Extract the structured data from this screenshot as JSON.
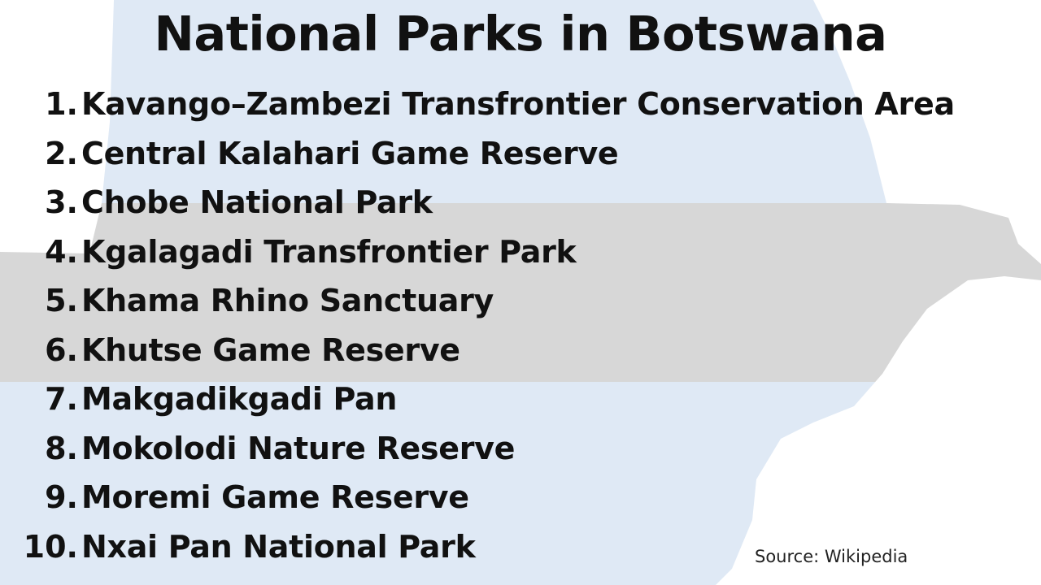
{
  "title": "National Parks in Botswana",
  "parks": [
    {
      "number": "1.",
      "name": "Kavango–Zambezi Transfrontier Conservation Area"
    },
    {
      "number": "2.",
      "name": "Central Kalahari Game Reserve"
    },
    {
      "number": "3.",
      "name": "Chobe National Park"
    },
    {
      "number": "4.",
      "name": "Kgalagadi Transfrontier Park"
    },
    {
      "number": "5.",
      "name": "Khama Rhino Sanctuary"
    },
    {
      "number": "6.",
      "name": "Khutse Game Reserve"
    },
    {
      "number": "7.",
      "name": "Makgadikgadi Pan"
    },
    {
      "number": "8.",
      "name": "Mokolodi Nature Reserve"
    },
    {
      "number": "9.",
      "name": "Moremi Game Reserve"
    },
    {
      "number": "10.",
      "name": "Nxai Pan National Park"
    }
  ],
  "source": "Source: Wikipedia",
  "colors": {
    "flag_blue": "#dfe9f5",
    "flag_gray": "#d7d7d7",
    "text": "#111111",
    "background": "#ffffff"
  }
}
